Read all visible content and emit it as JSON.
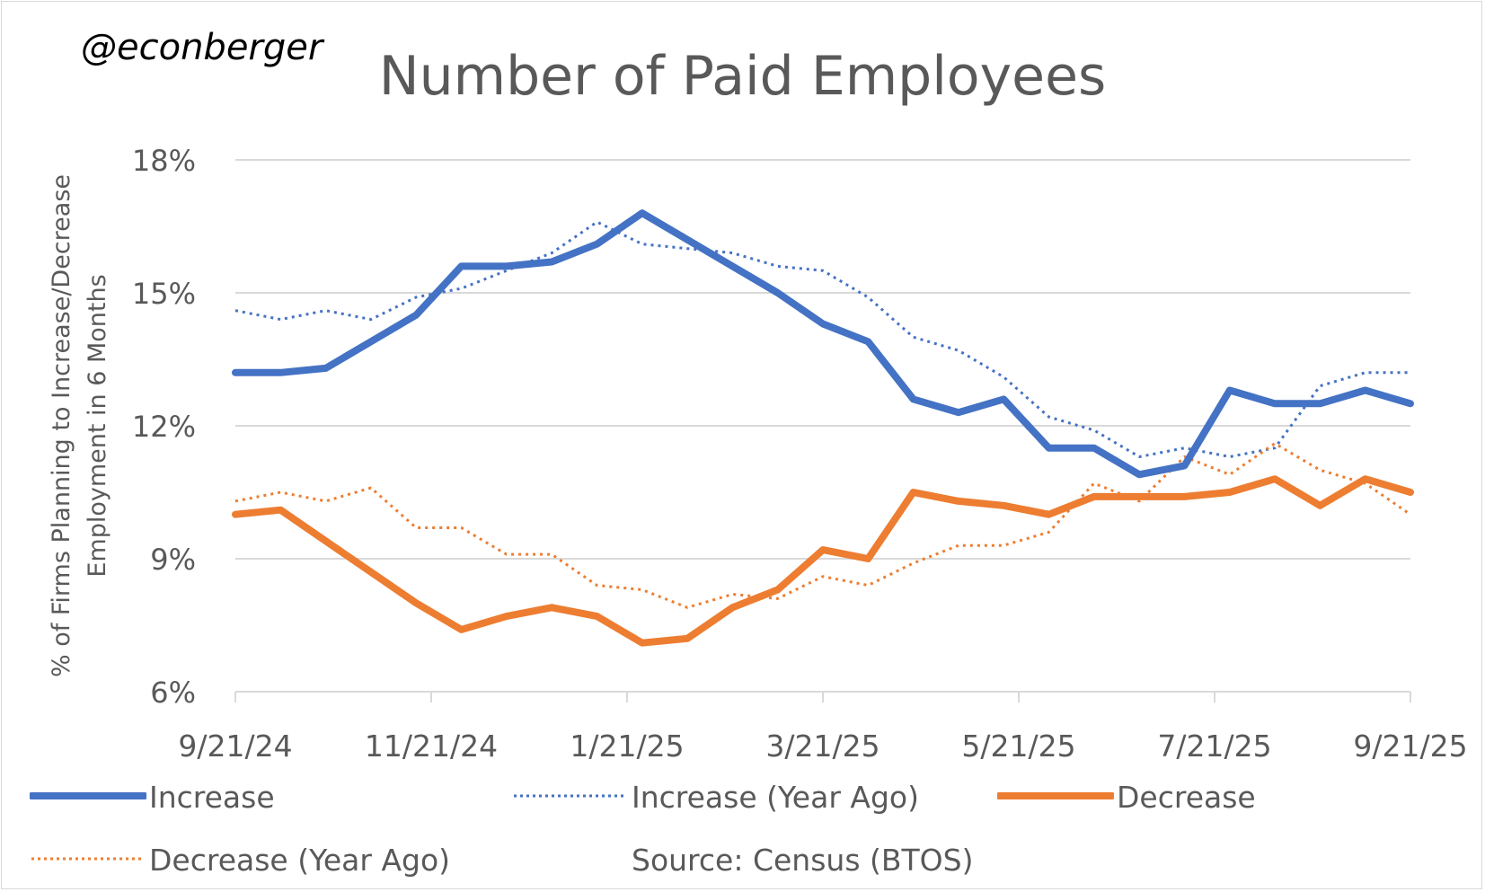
{
  "watermark": "@econberger",
  "source": "Source: Census (BTOS)",
  "chart_data": {
    "type": "line",
    "title": "Number of Paid Employees",
    "xlabel": "",
    "ylabel": "% of Firms Planning to Increase/Decrease Employment in 6 Months",
    "ylabel_lines": [
      "% of Firms Planning to Increase/Decrease",
      "Employment in 6 Months"
    ],
    "ylim": [
      6,
      18
    ],
    "yticks": [
      "6%",
      "9%",
      "12%",
      "15%",
      "18%"
    ],
    "ytick_values": [
      6,
      9,
      12,
      15,
      18
    ],
    "xticks": [
      "9/21/24",
      "11/21/24",
      "1/21/25",
      "3/21/25",
      "5/21/25",
      "7/21/25",
      "9/21/25"
    ],
    "grid": true,
    "legend_position": "bottom",
    "x": [
      0,
      1,
      2,
      3,
      4,
      5,
      6,
      7,
      8,
      9,
      10,
      11,
      12,
      13,
      14,
      15,
      16,
      17,
      18,
      19,
      20,
      21,
      22,
      23,
      24,
      25,
      26
    ],
    "series": [
      {
        "name": "Increase",
        "color": "#4472c4",
        "style": "solid",
        "values": [
          13.2,
          13.2,
          13.3,
          13.9,
          14.5,
          15.6,
          15.6,
          15.7,
          16.1,
          16.8,
          16.2,
          15.6,
          15.0,
          14.3,
          13.9,
          12.6,
          12.3,
          12.6,
          11.5,
          11.5,
          10.9,
          11.1,
          12.8,
          12.5,
          12.5,
          12.8,
          12.5
        ]
      },
      {
        "name": "Increase (Year Ago)",
        "color": "#4472c4",
        "style": "dotted",
        "values": [
          14.6,
          14.4,
          14.6,
          14.4,
          14.9,
          15.1,
          15.5,
          15.9,
          16.6,
          16.1,
          16.0,
          15.9,
          15.6,
          15.5,
          14.9,
          14.0,
          13.7,
          13.1,
          12.2,
          11.9,
          11.3,
          11.5,
          11.3,
          11.5,
          12.9,
          13.2,
          13.2
        ]
      },
      {
        "name": "Decrease",
        "color": "#ed7d31",
        "style": "solid",
        "values": [
          10.0,
          10.1,
          9.4,
          8.7,
          8.0,
          7.4,
          7.7,
          7.9,
          7.7,
          7.1,
          7.2,
          7.9,
          8.3,
          9.2,
          9.0,
          10.5,
          10.3,
          10.2,
          10.0,
          10.4,
          10.4,
          10.4,
          10.5,
          10.8,
          10.2,
          10.8,
          10.5
        ]
      },
      {
        "name": "Decrease (Year Ago)",
        "color": "#ed7d31",
        "style": "dotted",
        "values": [
          10.3,
          10.5,
          10.3,
          10.6,
          9.7,
          9.7,
          9.1,
          9.1,
          8.4,
          8.3,
          7.9,
          8.2,
          8.1,
          8.6,
          8.4,
          8.9,
          9.3,
          9.3,
          9.6,
          10.7,
          10.3,
          11.3,
          10.9,
          11.6,
          11.0,
          10.7,
          10.0
        ]
      }
    ]
  }
}
